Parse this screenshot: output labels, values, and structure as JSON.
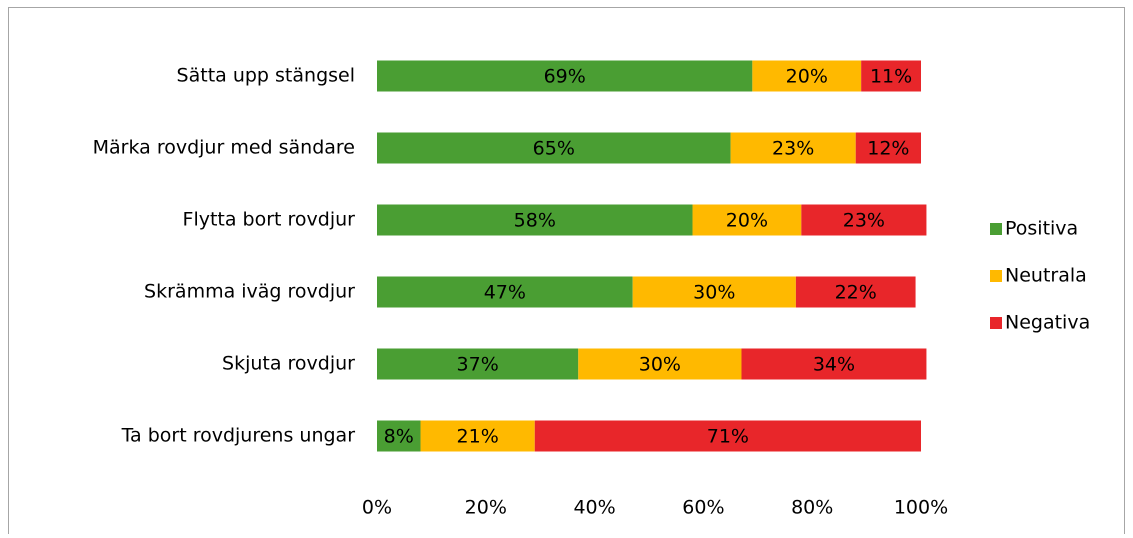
{
  "chart_data": {
    "type": "stacked-bar-horizontal",
    "categories": [
      "Sätta upp stängsel",
      "Märka rovdjur med sändare",
      "Flytta bort rovdjur",
      "Skrämma iväg rovdjur",
      "Skjuta rovdjur",
      "Ta bort rovdjurens ungar"
    ],
    "series": [
      {
        "name": "Positiva",
        "color": "#4a9e33",
        "values": [
          69,
          65,
          58,
          47,
          37,
          8
        ],
        "value_labels": [
          "69%",
          "65%",
          "58%",
          "47%",
          "37%",
          "8%"
        ]
      },
      {
        "name": "Neutrala",
        "color": "#ffb900",
        "values": [
          20,
          23,
          20,
          30,
          30,
          21
        ],
        "value_labels": [
          "20%",
          "23%",
          "20%",
          "30%",
          "30%",
          "21%"
        ]
      },
      {
        "name": "Negativa",
        "color": "#e8262a",
        "values": [
          11,
          12,
          23,
          22,
          34,
          71
        ],
        "value_labels": [
          "11%",
          "12%",
          "23%",
          "22%",
          "34%",
          "71%"
        ]
      }
    ],
    "xlim": [
      0,
      100
    ],
    "xticks": [
      {
        "value": 0,
        "label": "0%"
      },
      {
        "value": 20,
        "label": "20%"
      },
      {
        "value": 40,
        "label": "40%"
      },
      {
        "value": 60,
        "label": "60%"
      },
      {
        "value": 80,
        "label": "80%"
      },
      {
        "value": 100,
        "label": "100%"
      }
    ],
    "legend": "right"
  }
}
